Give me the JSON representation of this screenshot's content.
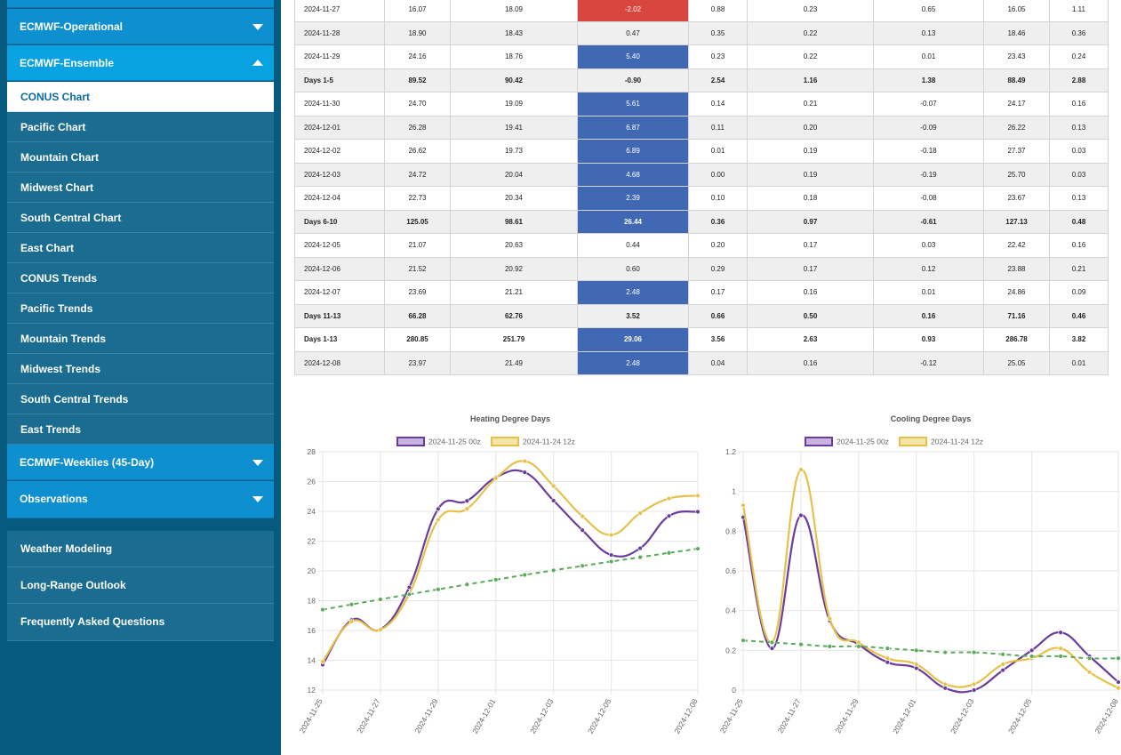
{
  "sidebar": {
    "operational": "ECMWF-Operational",
    "ensemble": "ECMWF-Ensemble",
    "items": [
      {
        "label": "CONUS Chart",
        "active": true
      },
      {
        "label": "Pacific Chart"
      },
      {
        "label": "Mountain Chart"
      },
      {
        "label": "Midwest Chart"
      },
      {
        "label": "South Central Chart"
      },
      {
        "label": "East Chart"
      },
      {
        "label": "CONUS Trends"
      },
      {
        "label": "Pacific Trends"
      },
      {
        "label": "Mountain Trends"
      },
      {
        "label": "Midwest Trends"
      },
      {
        "label": "South Central Trends"
      },
      {
        "label": "East Trends"
      }
    ],
    "weeklies": "ECMWF-Weeklies (45-Day)",
    "observations": "Observations",
    "bottom": [
      "Weather Modeling",
      "Long-Range Outlook",
      "Frequently Asked Questions"
    ]
  },
  "table": {
    "rows": [
      {
        "cells": [
          "2024-11-27",
          "16.07",
          "18.09",
          "-2.02",
          "0.88",
          "0.23",
          "0.65",
          "16.05",
          "1.11"
        ],
        "hl": "red"
      },
      {
        "cells": [
          "2024-11-28",
          "18.90",
          "18.43",
          "0.47",
          "0.35",
          "0.22",
          "0.13",
          "18.46",
          "0.36"
        ],
        "hl": ""
      },
      {
        "cells": [
          "2024-11-29",
          "24.16",
          "18.76",
          "5.40",
          "0.23",
          "0.22",
          "0.01",
          "23.43",
          "0.24"
        ],
        "hl": "blue"
      },
      {
        "cells": [
          "Days 1-5",
          "89.52",
          "90.42",
          "-0.90",
          "2.54",
          "1.16",
          "1.38",
          "88.49",
          "2.88"
        ],
        "hl": "",
        "sum": true
      },
      {
        "cells": [
          "2024-11-30",
          "24.70",
          "19.09",
          "5.61",
          "0.14",
          "0.21",
          "-0.07",
          "24.17",
          "0.16"
        ],
        "hl": "blue"
      },
      {
        "cells": [
          "2024-12-01",
          "26.28",
          "19.41",
          "6.87",
          "0.11",
          "0.20",
          "-0.09",
          "26.22",
          "0.13"
        ],
        "hl": "blue"
      },
      {
        "cells": [
          "2024-12-02",
          "26.62",
          "19.73",
          "6.89",
          "0.01",
          "0.19",
          "-0.18",
          "27.37",
          "0.03"
        ],
        "hl": "blue"
      },
      {
        "cells": [
          "2024-12-03",
          "24.72",
          "20.04",
          "4.68",
          "0.00",
          "0.19",
          "-0.19",
          "25.70",
          "0.03"
        ],
        "hl": "blue"
      },
      {
        "cells": [
          "2024-12-04",
          "22.73",
          "20.34",
          "2.39",
          "0.10",
          "0.18",
          "-0.08",
          "23.67",
          "0.13"
        ],
        "hl": "blue"
      },
      {
        "cells": [
          "Days 6-10",
          "125.05",
          "98.61",
          "26.44",
          "0.36",
          "0.97",
          "-0.61",
          "127.13",
          "0.48"
        ],
        "hl": "blue",
        "sum": true
      },
      {
        "cells": [
          "2024-12-05",
          "21.07",
          "20.63",
          "0.44",
          "0.20",
          "0.17",
          "0.03",
          "22.42",
          "0.16"
        ],
        "hl": ""
      },
      {
        "cells": [
          "2024-12-06",
          "21.52",
          "20.92",
          "0.60",
          "0.29",
          "0.17",
          "0.12",
          "23.88",
          "0.21"
        ],
        "hl": ""
      },
      {
        "cells": [
          "2024-12-07",
          "23.69",
          "21.21",
          "2.48",
          "0.17",
          "0.16",
          "0.01",
          "24.86",
          "0.09"
        ],
        "hl": "blue"
      },
      {
        "cells": [
          "Days 11-13",
          "66.28",
          "62.76",
          "3.52",
          "0.66",
          "0.50",
          "0.16",
          "71.16",
          "0.46"
        ],
        "hl": "",
        "sum": true
      },
      {
        "cells": [
          "Days 1-13",
          "280.85",
          "251.79",
          "29.06",
          "3.56",
          "2.63",
          "0.93",
          "286.78",
          "3.82"
        ],
        "hl": "blue",
        "sum": true
      },
      {
        "cells": [
          "2024-12-08",
          "23.97",
          "21.49",
          "2.48",
          "0.04",
          "0.16",
          "-0.12",
          "25.05",
          "0.01"
        ],
        "hl": "blue"
      }
    ]
  },
  "chart_data": [
    {
      "type": "line",
      "title": "Heating Degree Days",
      "x": [
        "2024-11-25",
        "2024-11-26",
        "2024-11-27",
        "2024-11-28",
        "2024-11-29",
        "2024-11-30",
        "2024-12-01",
        "2024-12-02",
        "2024-12-03",
        "2024-12-04",
        "2024-12-05",
        "2024-12-06",
        "2024-12-07",
        "2024-12-08"
      ],
      "xticks": [
        "2024-11-25",
        "2024-11-27",
        "2024-11-29",
        "2024-12-01",
        "2024-12-03",
        "2024-12-05",
        "2024-12-08"
      ],
      "ylim": [
        12,
        28
      ],
      "yticks": [
        12,
        14,
        16,
        18,
        20,
        22,
        24,
        26,
        28
      ],
      "legend": [
        "2024-11-25 00z",
        "2024-11-24 12z"
      ],
      "series": [
        {
          "name": "2024-11-25 00z",
          "color": "#6a3d9a",
          "dashed": false,
          "values": [
            13.7,
            16.7,
            16.07,
            18.9,
            24.16,
            24.7,
            26.28,
            26.62,
            24.72,
            22.73,
            21.07,
            21.52,
            23.69,
            23.97
          ]
        },
        {
          "name": "2024-11-24 12z",
          "color": "#e6c14a",
          "dashed": false,
          "values": [
            13.9,
            16.6,
            16.05,
            18.46,
            23.43,
            24.17,
            26.22,
            27.37,
            25.7,
            23.67,
            22.42,
            23.88,
            24.86,
            25.05
          ]
        },
        {
          "color": "#5aaa5a",
          "dashed": true,
          "values": [
            17.4,
            17.75,
            18.09,
            18.43,
            18.76,
            19.09,
            19.41,
            19.73,
            20.04,
            20.34,
            20.63,
            20.92,
            21.21,
            21.49
          ]
        }
      ]
    },
    {
      "type": "line",
      "title": "Cooling Degree Days",
      "x": [
        "2024-11-25",
        "2024-11-26",
        "2024-11-27",
        "2024-11-28",
        "2024-11-29",
        "2024-11-30",
        "2024-12-01",
        "2024-12-02",
        "2024-12-03",
        "2024-12-04",
        "2024-12-05",
        "2024-12-06",
        "2024-12-07",
        "2024-12-08"
      ],
      "xticks": [
        "2024-11-25",
        "2024-11-27",
        "2024-11-29",
        "2024-12-01",
        "2024-12-03",
        "2024-12-05",
        "2024-12-08"
      ],
      "ylim": [
        0,
        1.2
      ],
      "yticks": [
        0,
        0.2,
        0.4,
        0.6,
        0.8,
        1.0,
        1.2
      ],
      "legend": [
        "2024-11-25 00z",
        "2024-11-24 12z"
      ],
      "series": [
        {
          "name": "2024-11-25 00z",
          "color": "#6a3d9a",
          "dashed": false,
          "values": [
            0.87,
            0.21,
            0.88,
            0.35,
            0.23,
            0.14,
            0.11,
            0.01,
            0.0,
            0.1,
            0.2,
            0.29,
            0.17,
            0.04
          ]
        },
        {
          "name": "2024-11-24 12z",
          "color": "#e6c14a",
          "dashed": false,
          "values": [
            0.93,
            0.24,
            1.11,
            0.36,
            0.24,
            0.16,
            0.13,
            0.03,
            0.03,
            0.13,
            0.16,
            0.21,
            0.09,
            0.01
          ]
        },
        {
          "color": "#5aaa5a",
          "dashed": true,
          "values": [
            0.25,
            0.24,
            0.23,
            0.22,
            0.22,
            0.21,
            0.2,
            0.19,
            0.19,
            0.18,
            0.17,
            0.17,
            0.16,
            0.16
          ]
        }
      ]
    }
  ]
}
